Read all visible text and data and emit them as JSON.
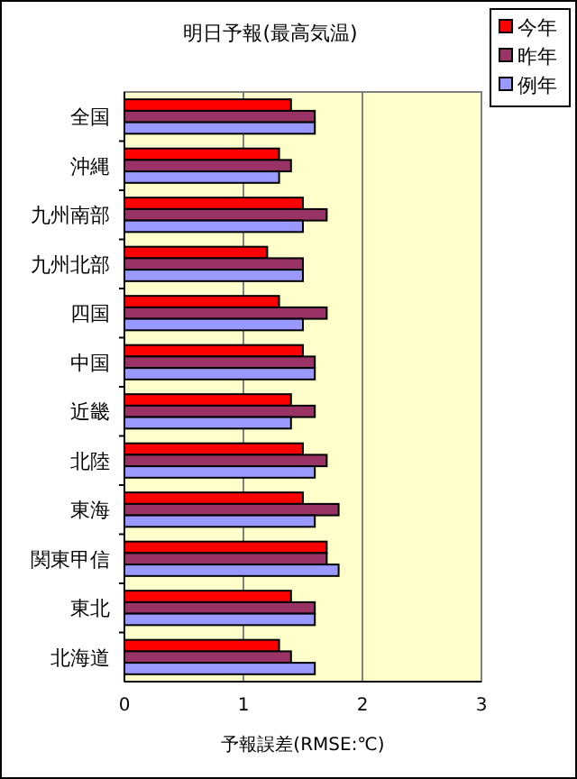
{
  "chart_data": {
    "type": "bar",
    "orientation": "horizontal",
    "title": "明日予報(最高気温)",
    "xlabel": "予報誤差(RMSE:℃)",
    "categories": [
      "全国",
      "沖縄",
      "九州南部",
      "九州北部",
      "四国",
      "中国",
      "近畿",
      "北陸",
      "東海",
      "関東甲信",
      "東北",
      "北海道"
    ],
    "series": [
      {
        "name": "今年",
        "color": "#ff0000",
        "values": [
          1.4,
          1.3,
          1.5,
          1.2,
          1.3,
          1.5,
          1.4,
          1.5,
          1.5,
          1.7,
          1.4,
          1.3
        ]
      },
      {
        "name": "昨年",
        "color": "#993366",
        "values": [
          1.6,
          1.4,
          1.7,
          1.5,
          1.7,
          1.6,
          1.6,
          1.7,
          1.8,
          1.7,
          1.6,
          1.4
        ]
      },
      {
        "name": "例年",
        "color": "#9999ff",
        "values": [
          1.6,
          1.3,
          1.5,
          1.5,
          1.5,
          1.6,
          1.4,
          1.6,
          1.6,
          1.8,
          1.6,
          1.6
        ]
      }
    ],
    "xlim": [
      0,
      3
    ],
    "xticks": [
      0,
      1,
      2,
      3
    ],
    "grid": "x",
    "legend": "top right"
  }
}
